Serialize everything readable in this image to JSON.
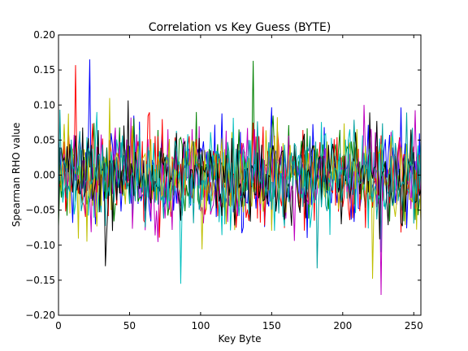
{
  "chart_data": {
    "type": "line",
    "title": "Correlation vs Key Guess (BYTE)",
    "xlabel": "Key Byte",
    "ylabel": "Spearman RHO value",
    "xlim": [
      0,
      255
    ],
    "ylim": [
      -0.2,
      0.2
    ],
    "xticks": [
      "0",
      "50",
      "100",
      "150",
      "200",
      "250"
    ],
    "yticks": [
      "−0.20",
      "−0.15",
      "−0.10",
      "−0.05",
      "0.00",
      "0.05",
      "0.10",
      "0.15",
      "0.20"
    ],
    "grid": false,
    "legend": "none",
    "series_count": 8,
    "colors": [
      "#0000ff",
      "#008000",
      "#ff0000",
      "#00bfbf",
      "#bf00bf",
      "#bfbf00",
      "#000000",
      "#00a0a0"
    ],
    "highlights": [
      {
        "x": 22,
        "y": 0.165
      },
      {
        "x": 137,
        "y": 0.163
      },
      {
        "x": 12,
        "y": 0.157
      },
      {
        "x": 86,
        "y": -0.155
      },
      {
        "x": 227,
        "y": -0.171
      },
      {
        "x": 221,
        "y": -0.148
      },
      {
        "x": 33,
        "y": -0.13
      },
      {
        "x": 182,
        "y": -0.133
      }
    ]
  }
}
